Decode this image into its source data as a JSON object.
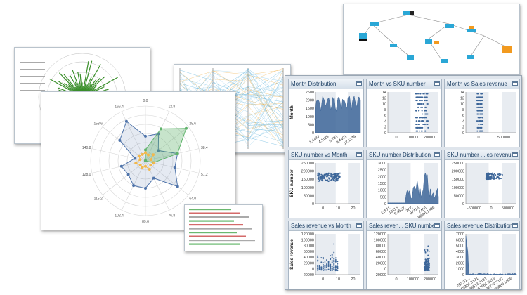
{
  "colors": {
    "series": "#3d6699",
    "band": "#e8ecf1",
    "radar_green": "#5fb36b",
    "radar_blue": "#4f74aa",
    "radar_orange": "#f2b84b"
  },
  "matrix": {
    "panels": [
      {
        "id": "p11",
        "title": "Month Distribution",
        "ylabel": "Month",
        "yticks": [
          "2500",
          "2000",
          "1500",
          "1000",
          "500",
          "0"
        ],
        "xticks": [
          "1.4447",
          "4.1129",
          "6.781",
          "9.4491",
          "12.1174"
        ],
        "kind": "dist-month"
      },
      {
        "id": "p12",
        "title": "Month vs SKU number",
        "ylabel": "",
        "yticks": [
          "14",
          "12",
          "10",
          "8",
          "6",
          "4",
          "2",
          "0"
        ],
        "xticks": [
          "0",
          "100000",
          "200000"
        ],
        "kind": "scatter-right"
      },
      {
        "id": "p13",
        "title": "Month vs Sales revenue",
        "ylabel": "",
        "yticks": [
          "14",
          "12",
          "10",
          "8",
          "6",
          "4",
          "2",
          "0"
        ],
        "xticks": [
          "0",
          "500000"
        ],
        "kind": "scatter-left"
      },
      {
        "id": "p21",
        "title": "SKU number vs Month",
        "ylabel": "SKU number",
        "yticks": [
          "250000",
          "200000",
          "150000",
          "100000",
          "50000",
          "0"
        ],
        "xticks": [
          "0",
          "10",
          "20"
        ],
        "kind": "band"
      },
      {
        "id": "p22",
        "title": "SKU number Distribution",
        "ylabel": "",
        "yticks": [
          "3000",
          "2500",
          "2000",
          "1500",
          "1000",
          "500",
          "0"
        ],
        "xticks": [
          "11671.",
          ".1911S",
          "5.4552.",
          "267.",
          "97416.",
          "7456.",
          "888896.1686"
        ],
        "kind": "dist-sku"
      },
      {
        "id": "p23",
        "title": "SKU number ...les revenue",
        "ylabel": "",
        "yticks": [
          "250000",
          "200000",
          "150000",
          "100000",
          "50000",
          "0"
        ],
        "xticks": [
          "-500000",
          "0",
          "500000"
        ],
        "kind": "scatter-spread"
      },
      {
        "id": "p31",
        "title": "Sales revenue vs Month",
        "ylabel": "Sales revenue",
        "yticks": [
          "120000",
          "100000",
          "80000",
          "60000",
          "40000",
          "20000",
          "0",
          "-20000"
        ],
        "xticks": [
          "0",
          "10",
          "20"
        ],
        "kind": "scatter-cols"
      },
      {
        "id": "p32",
        "title": "Sales reven... SKU number",
        "ylabel": "",
        "yticks": [
          "120000",
          "100000",
          "80000",
          "60000",
          "40000",
          "20000",
          "0",
          "-20000"
        ],
        "xticks": [
          "0",
          "100000",
          "200000"
        ],
        "kind": "scatter-rightcol"
      },
      {
        "id": "p33",
        "title": "Sales revenue Distribution",
        "ylabel": "",
        "yticks": [
          "7000",
          "6000",
          "5000",
          "4000",
          "3000",
          "2000",
          "1000",
          "0"
        ],
        "xticks": [
          "252.31...",
          "19364.3131",
          "38513.3131",
          "57661.9115",
          "76770.7177",
          "95889.1686"
        ],
        "kind": "dist-sales"
      }
    ]
  },
  "radar": {
    "spoke_labels": [
      "0.0",
      "12.8",
      "25.6",
      "38.4",
      "51.2",
      "64.0",
      "76.8",
      "89.6",
      "102.4",
      "115.2",
      "128.0",
      "140.8",
      "153.6",
      "166.4"
    ],
    "blue_values": [
      0.45,
      0.55,
      0.3,
      0.6,
      0.55,
      0.75,
      0.35,
      0.5,
      0.5,
      0.4,
      0.45,
      0.2,
      0.6,
      0.8
    ],
    "green_values": [
      0.2,
      0.65,
      0.95,
      0.6,
      0.15,
      0.0,
      0.0,
      0.0,
      0.0,
      0.0,
      0.0,
      0.0,
      0.0,
      0.0
    ],
    "orange_values": [
      0.15,
      0.12,
      0.18,
      0.1,
      0.16,
      0.12,
      0.17,
      0.1,
      0.14,
      0.12,
      0.18,
      0.1,
      0.15,
      0.13
    ]
  }
}
